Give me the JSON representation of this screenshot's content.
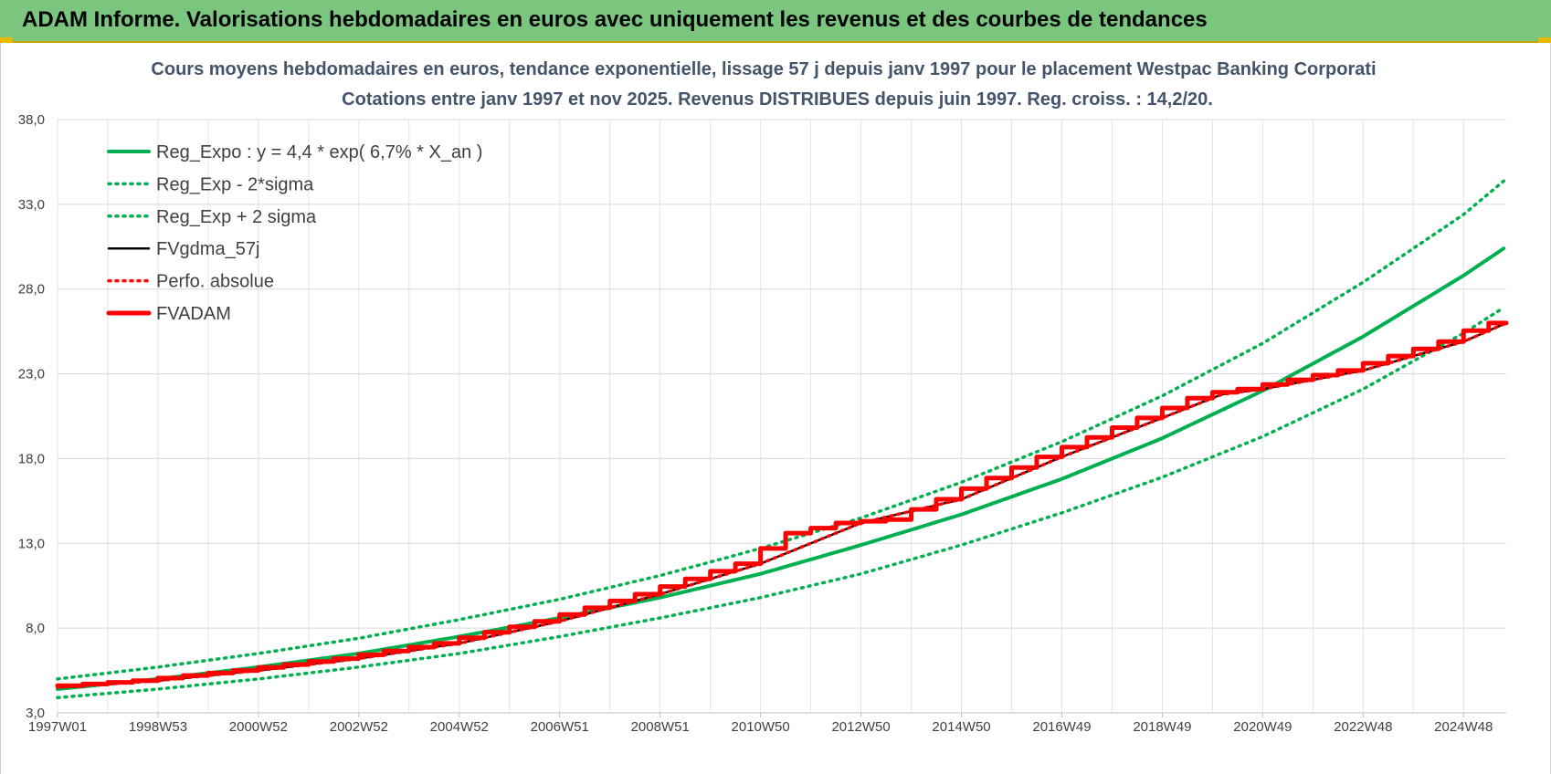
{
  "banner": {
    "title": "ADAM Informe. Valorisations hebdomadaires en euros avec uniquement les revenus et des courbes de tendances"
  },
  "colors": {
    "banner_bg": "#7ac67e",
    "regression": "#00b050",
    "gdma": "#000000",
    "perfo": "#ff0000",
    "fvadam": "#ff0000",
    "title": "#44546a"
  },
  "chart_data": {
    "type": "line",
    "title": "Cours moyens hebdomadaires en euros, tendance exponentielle, lissage 57 j depuis janv 1997  pour le placement Westpac Banking Corporati",
    "subtitle": "Cotations entre janv 1997 et nov 2025. Revenus DISTRIBUES depuis juin 1997. Reg.  croiss. : 14,2/20.",
    "xlabel": "",
    "ylabel": "",
    "ylim": [
      3.0,
      38.0
    ],
    "xlim": [
      1997.0,
      2025.85
    ],
    "y_ticks": [
      "3,0",
      "8,0",
      "13,0",
      "18,0",
      "23,0",
      "28,0",
      "33,0",
      "38,0"
    ],
    "x_ticks": [
      "1997W01",
      "1998W53",
      "2000W52",
      "2002W52",
      "2004W52",
      "2006W51",
      "2008W51",
      "2010W50",
      "2012W50",
      "2014W50",
      "2016W49",
      "2018W49",
      "2020W49",
      "2022W48",
      "2024W48"
    ],
    "x_tick_years": [
      1997.0,
      1999.0,
      2001.0,
      2003.0,
      2005.0,
      2007.0,
      2009.0,
      2011.0,
      2013.0,
      2015.0,
      2017.0,
      2019.0,
      2021.0,
      2023.0,
      2025.0
    ],
    "grid": true,
    "legend_position": "top-left",
    "series": [
      {
        "name": "Reg_Expo : y = 4,4 * exp( 6,7% *  X_an )",
        "style": "solid-thick",
        "color": "#00b050",
        "x": [
          1997,
          1999,
          2001,
          2003,
          2005,
          2007,
          2009,
          2011,
          2013,
          2015,
          2017,
          2019,
          2021,
          2023,
          2025,
          2025.85
        ],
        "values": [
          4.4,
          5.0,
          5.7,
          6.5,
          7.5,
          8.6,
          9.8,
          11.2,
          12.9,
          14.7,
          16.8,
          19.2,
          22.0,
          25.2,
          28.8,
          30.5
        ]
      },
      {
        "name": "Reg_Exp - 2*sigma",
        "style": "dotted",
        "color": "#00b050",
        "x": [
          1997,
          1999,
          2001,
          2003,
          2005,
          2007,
          2009,
          2011,
          2013,
          2015,
          2017,
          2019,
          2021,
          2023,
          2025,
          2025.85
        ],
        "values": [
          3.9,
          4.4,
          5.0,
          5.7,
          6.5,
          7.5,
          8.6,
          9.8,
          11.2,
          12.9,
          14.8,
          16.9,
          19.3,
          22.1,
          25.4,
          27.0
        ]
      },
      {
        "name": "Reg_Exp + 2 sigma",
        "style": "dotted",
        "color": "#00b050",
        "x": [
          1997,
          1999,
          2001,
          2003,
          2005,
          2007,
          2009,
          2011,
          2013,
          2015,
          2017,
          2019,
          2021,
          2023,
          2025,
          2025.85
        ],
        "values": [
          5.0,
          5.7,
          6.5,
          7.4,
          8.5,
          9.7,
          11.1,
          12.7,
          14.5,
          16.6,
          19.0,
          21.7,
          24.8,
          28.4,
          32.4,
          34.5
        ]
      },
      {
        "name": "FVgdma_57j",
        "style": "solid",
        "color": "#000000",
        "x": [
          1997,
          1999,
          2001,
          2003,
          2005,
          2007,
          2009,
          2011,
          2013,
          2015,
          2017,
          2019,
          2020.2,
          2021,
          2023,
          2025,
          2025.85
        ],
        "values": [
          4.5,
          4.9,
          5.5,
          6.2,
          7.1,
          8.4,
          10.0,
          11.8,
          14.2,
          15.6,
          18.1,
          20.4,
          21.8,
          22.1,
          23.2,
          24.9,
          26.0
        ]
      },
      {
        "name": "Perfo. absolue",
        "style": "dotted",
        "color": "#ff0000",
        "x": [
          1997,
          1999,
          2001,
          2003,
          2005,
          2007,
          2009,
          2011,
          2013,
          2015,
          2017,
          2019,
          2020.2,
          2021,
          2023,
          2025,
          2025.85
        ],
        "values": [
          4.5,
          4.9,
          5.5,
          6.2,
          7.1,
          8.4,
          10.0,
          11.8,
          14.2,
          15.6,
          18.1,
          20.4,
          21.8,
          22.1,
          23.2,
          24.9,
          26.0
        ]
      },
      {
        "name": "FVADAM",
        "style": "solid-thick-stepped",
        "color": "#ff0000",
        "x": [
          1997,
          1999,
          2001,
          2003,
          2005,
          2007,
          2009,
          2011,
          2012,
          2013,
          2014,
          2015,
          2017,
          2019,
          2020.2,
          2021,
          2023,
          2025,
          2025.85
        ],
        "values": [
          4.5,
          4.9,
          5.5,
          6.2,
          7.1,
          8.4,
          10.0,
          11.8,
          13.6,
          14.2,
          14.4,
          15.6,
          18.1,
          20.4,
          21.8,
          22.1,
          23.2,
          24.9,
          26.0
        ]
      }
    ]
  }
}
